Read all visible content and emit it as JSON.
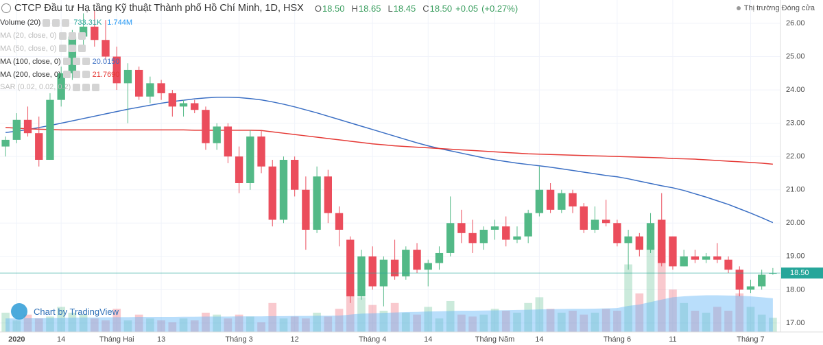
{
  "chart_data": {
    "type": "candlestick",
    "title": "CTCP Đầu tư Hạ tầng Kỹ thuật Thành phố Hồ Chí Minh, 1D, HSX",
    "header_keys": [
      "O",
      "H",
      "L",
      "C"
    ],
    "header_labels": [
      "18.50",
      "18.65",
      "18.45",
      "18.50",
      "+0.05",
      "(+0.27%)"
    ],
    "status": "Thị trường Đóng cửa",
    "attribution": "Chart by TradingView",
    "categories": [
      null,
      "2020",
      null,
      null,
      null,
      "14",
      null,
      null,
      null,
      null,
      "Tháng Hai",
      null,
      null,
      null,
      "13",
      null,
      null,
      null,
      null,
      null,
      null,
      "Tháng 3",
      null,
      null,
      null,
      null,
      "12",
      null,
      null,
      null,
      null,
      null,
      null,
      "Tháng 4",
      null,
      null,
      null,
      null,
      "14",
      null,
      null,
      null,
      null,
      null,
      "Tháng Năm",
      null,
      null,
      null,
      "14",
      null,
      null,
      null,
      null,
      null,
      null,
      "Tháng 6",
      null,
      null,
      null,
      null,
      "11",
      null,
      null,
      null,
      null,
      null,
      null,
      "Tháng 7",
      null,
      null
    ],
    "open": [
      22.3,
      22.5,
      23.1,
      22.7,
      21.9,
      23.7,
      24.5,
      25.6,
      25.9,
      25.5,
      25.0,
      24.2,
      24.6,
      23.8,
      24.2,
      23.9,
      23.5,
      23.6,
      23.4,
      22.4,
      22.9,
      22.0,
      21.2,
      22.6,
      21.7,
      20.1,
      21.9,
      21.0,
      19.8,
      21.4,
      20.3,
      19.5,
      17.8,
      19.0,
      18.1,
      18.9,
      18.4,
      19.2,
      18.6,
      18.8,
      19.1,
      20.0,
      19.7,
      19.4,
      19.8,
      19.9,
      19.5,
      19.6,
      20.3,
      21.0,
      20.4,
      20.9,
      20.5,
      19.8,
      20.1,
      20.0,
      19.4,
      19.6,
      19.2,
      20.1,
      19.6,
      18.7,
      19.0,
      18.9,
      19.0,
      18.9,
      18.6,
      18.0,
      18.1,
      18.5
    ],
    "high": [
      22.6,
      23.3,
      23.5,
      23.2,
      23.9,
      24.7,
      25.8,
      26.3,
      26.4,
      26.1,
      25.3,
      24.8,
      24.7,
      24.4,
      24.3,
      24.0,
      23.7,
      23.7,
      23.5,
      23.0,
      23.0,
      22.3,
      22.8,
      22.8,
      21.9,
      22.0,
      22.0,
      21.4,
      21.7,
      21.6,
      20.5,
      19.6,
      19.2,
      19.3,
      19.0,
      19.5,
      19.3,
      19.4,
      18.9,
      19.3,
      20.8,
      20.4,
      20.1,
      19.9,
      20.1,
      20.2,
      19.9,
      20.4,
      21.7,
      21.2,
      21.0,
      21.0,
      20.6,
      20.5,
      20.7,
      20.1,
      19.8,
      19.7,
      20.3,
      20.9,
      19.6,
      19.2,
      19.2,
      19.1,
      19.4,
      19.0,
      18.7,
      18.3,
      18.6,
      18.65
    ],
    "low": [
      22.0,
      22.4,
      22.6,
      21.7,
      21.9,
      23.5,
      24.3,
      25.2,
      25.3,
      24.9,
      24.0,
      23.0,
      23.7,
      23.6,
      23.7,
      23.2,
      23.2,
      23.3,
      22.2,
      22.2,
      21.8,
      20.9,
      21.0,
      21.5,
      19.9,
      20.0,
      20.8,
      19.2,
      19.7,
      20.0,
      19.3,
      17.6,
      17.7,
      18.0,
      17.5,
      18.3,
      18.3,
      18.5,
      18.1,
      18.6,
      19.0,
      19.4,
      19.1,
      19.2,
      19.5,
      19.3,
      19.4,
      19.4,
      20.2,
      20.3,
      20.3,
      20.3,
      19.7,
      19.7,
      19.9,
      19.3,
      18.6,
      19.0,
      19.1,
      18.7,
      18.6,
      18.7,
      18.8,
      18.8,
      18.8,
      18.5,
      17.8,
      17.9,
      18.0,
      18.45
    ],
    "close": [
      22.5,
      23.1,
      22.7,
      21.9,
      23.7,
      24.5,
      25.6,
      25.9,
      25.5,
      25.0,
      24.2,
      24.6,
      23.8,
      24.2,
      23.9,
      23.5,
      23.6,
      23.4,
      22.4,
      22.9,
      22.0,
      21.2,
      22.6,
      21.7,
      20.1,
      21.9,
      21.0,
      19.8,
      21.4,
      20.3,
      19.8,
      17.8,
      19.0,
      18.1,
      18.9,
      18.4,
      19.2,
      18.6,
      18.8,
      19.1,
      20.0,
      19.7,
      19.4,
      19.8,
      19.9,
      19.5,
      19.6,
      20.3,
      21.0,
      20.4,
      20.9,
      20.5,
      19.8,
      20.1,
      20.0,
      19.4,
      19.6,
      19.2,
      20.0,
      18.8,
      18.7,
      19.0,
      18.9,
      19.0,
      18.9,
      18.6,
      18.0,
      18.1,
      18.45,
      18.5
    ],
    "up_color": "#53b987",
    "down_color": "#eb4d5c",
    "ylim": [
      16.73,
      26.7
    ],
    "yticks": [
      {
        "value": 17,
        "label": "17.00"
      },
      {
        "value": 18,
        "label": "18.00"
      },
      {
        "value": 19,
        "label": "19.00"
      },
      {
        "value": 20,
        "label": "20.00"
      },
      {
        "value": 21,
        "label": "21.00"
      },
      {
        "value": 22,
        "label": "22.00"
      },
      {
        "value": 23,
        "label": "23.00"
      },
      {
        "value": 24,
        "label": "24.00"
      },
      {
        "value": 25,
        "label": "25.00"
      },
      {
        "value": 26,
        "label": "26.00"
      }
    ],
    "y2lim": [
      0,
      17200000
    ],
    "grid": true,
    "last_price_color": "#26a69a",
    "volume": {
      "name": "Volume (20)",
      "values": [
        1000000,
        600000,
        900000,
        700000,
        800000,
        1300000,
        1000000,
        900000,
        700000,
        600000,
        1200000,
        600000,
        900000,
        700000,
        600000,
        500000,
        700000,
        600000,
        1000000,
        900000,
        700000,
        900000,
        800000,
        500000,
        1500000,
        700000,
        800000,
        700000,
        1000000,
        800000,
        1200000,
        3000000,
        1800000,
        1400000,
        1100000,
        1500000,
        1000000,
        900000,
        1300000,
        700000,
        1600000,
        900000,
        800000,
        900000,
        1200000,
        1100000,
        1000000,
        1500000,
        1800000,
        1200000,
        1000000,
        1100000,
        900000,
        1000000,
        1200000,
        1100000,
        3500000,
        2000000,
        4500000,
        4300000,
        2200000,
        1500000,
        1100000,
        1000000,
        1300000,
        1100000,
        2000000,
        1300000,
        900000,
        733310
      ],
      "value_label": "733.31K",
      "ma_values": [
        700000,
        700000,
        710000,
        710000,
        720000,
        730000,
        740000,
        750000,
        750000,
        760000,
        770000,
        770000,
        780000,
        780000,
        780000,
        780000,
        790000,
        790000,
        800000,
        800000,
        800000,
        810000,
        810000,
        810000,
        820000,
        820000,
        830000,
        830000,
        840000,
        840000,
        850000,
        900000,
        950000,
        970000,
        990000,
        1010000,
        1030000,
        1040000,
        1060000,
        1070000,
        1090000,
        1100000,
        1100000,
        1110000,
        1120000,
        1130000,
        1140000,
        1150000,
        1170000,
        1180000,
        1190000,
        1200000,
        1200000,
        1210000,
        1220000,
        1240000,
        1350000,
        1420000,
        1550000,
        1680000,
        1800000,
        1850000,
        1880000,
        1900000,
        1900000,
        1890000,
        1880000,
        1850000,
        1800000,
        1744000
      ],
      "ma_label": "1.744M",
      "ma_color": "#64b5f6"
    },
    "indicators": [
      {
        "name": "MA (20, close, 0)",
        "visible": false
      },
      {
        "name": "MA (50, close, 0)",
        "visible": false
      },
      {
        "name": "MA (100, close, 0)",
        "visible": true,
        "color": "#3b6fc4",
        "value_label": "20.0150",
        "values": [
          22.72,
          22.76,
          22.81,
          22.87,
          22.93,
          23.0,
          23.07,
          23.14,
          23.21,
          23.28,
          23.35,
          23.42,
          23.48,
          23.54,
          23.6,
          23.65,
          23.69,
          23.73,
          23.76,
          23.78,
          23.78,
          23.77,
          23.74,
          23.7,
          23.64,
          23.57,
          23.49,
          23.4,
          23.31,
          23.21,
          23.11,
          23.01,
          22.91,
          22.81,
          22.71,
          22.61,
          22.51,
          22.41,
          22.32,
          22.24,
          22.17,
          22.1,
          22.03,
          21.96,
          21.9,
          21.85,
          21.8,
          21.76,
          21.72,
          21.68,
          21.63,
          21.58,
          21.53,
          21.48,
          21.43,
          21.39,
          21.33,
          21.26,
          21.19,
          21.12,
          21.06,
          20.98,
          20.88,
          20.78,
          20.67,
          20.56,
          20.43,
          20.3,
          20.16,
          20.015
        ]
      },
      {
        "name": "MA (200, close, 0)",
        "visible": true,
        "color": "#e53935",
        "value_label": "21.7690",
        "values": [
          22.87,
          22.85,
          22.83,
          22.82,
          22.81,
          22.8,
          22.8,
          22.8,
          22.8,
          22.8,
          22.8,
          22.8,
          22.8,
          22.8,
          22.8,
          22.8,
          22.8,
          22.79,
          22.79,
          22.79,
          22.79,
          22.79,
          22.79,
          22.78,
          22.74,
          22.7,
          22.66,
          22.62,
          22.58,
          22.54,
          22.5,
          22.46,
          22.42,
          22.38,
          22.35,
          22.32,
          22.3,
          22.28,
          22.26,
          22.24,
          22.22,
          22.2,
          22.18,
          22.16,
          22.14,
          22.12,
          22.1,
          22.08,
          22.07,
          22.06,
          22.05,
          22.04,
          22.03,
          22.02,
          22.01,
          22.0,
          21.99,
          21.98,
          21.97,
          21.96,
          21.94,
          21.93,
          21.92,
          21.9,
          21.88,
          21.86,
          21.84,
          21.82,
          21.8,
          21.769
        ]
      },
      {
        "name": "SAR (0.02, 0.02, 0.2)",
        "visible": false
      }
    ]
  }
}
